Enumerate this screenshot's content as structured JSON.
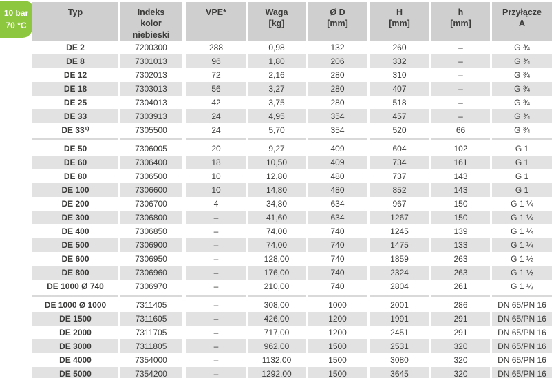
{
  "badge": {
    "line1": "10 bar",
    "line2": "70 °C"
  },
  "colors": {
    "badge_green": "#8dc63f",
    "header_gray": "#cfcfcf",
    "stripe_gray": "#e2e2e2",
    "text": "#3b3b3a"
  },
  "table": {
    "headers": [
      "Typ",
      "Indeks\nkolor niebieski",
      "VPE*",
      "Waga\n[kg]",
      "Ø D\n[mm]",
      "H\n[mm]",
      "h\n[mm]",
      "Przyłącze\nA"
    ],
    "groups": [
      {
        "rows": [
          [
            "DE 2",
            "7200300",
            "288",
            "0,98",
            "132",
            "260",
            "–",
            "G ¾"
          ],
          [
            "DE 8",
            "7301013",
            "96",
            "1,80",
            "206",
            "332",
            "–",
            "G ¾"
          ],
          [
            "DE 12",
            "7302013",
            "72",
            "2,16",
            "280",
            "310",
            "–",
            "G ¾"
          ],
          [
            "DE 18",
            "7303013",
            "56",
            "3,27",
            "280",
            "407",
            "–",
            "G ¾"
          ],
          [
            "DE 25",
            "7304013",
            "42",
            "3,75",
            "280",
            "518",
            "–",
            "G ¾"
          ],
          [
            "DE 33",
            "7303913",
            "24",
            "4,95",
            "354",
            "457",
            "–",
            "G ¾"
          ],
          [
            "DE 33¹⁾",
            "7305500",
            "24",
            "5,70",
            "354",
            "520",
            "66",
            "G ¾"
          ]
        ]
      },
      {
        "rows": [
          [
            "DE 50",
            "7306005",
            "20",
            "9,27",
            "409",
            "604",
            "102",
            "G 1"
          ],
          [
            "DE 60",
            "7306400",
            "18",
            "10,50",
            "409",
            "734",
            "161",
            "G 1"
          ],
          [
            "DE 80",
            "7306500",
            "10",
            "12,80",
            "480",
            "737",
            "143",
            "G 1"
          ],
          [
            "DE 100",
            "7306600",
            "10",
            "14,80",
            "480",
            "852",
            "143",
            "G 1"
          ],
          [
            "DE 200",
            "7306700",
            "4",
            "34,80",
            "634",
            "967",
            "150",
            "G 1 ¼"
          ],
          [
            "DE 300",
            "7306800",
            "–",
            "41,60",
            "634",
            "1267",
            "150",
            "G 1 ¼"
          ],
          [
            "DE 400",
            "7306850",
            "–",
            "74,00",
            "740",
            "1245",
            "139",
            "G 1 ¼"
          ],
          [
            "DE 500",
            "7306900",
            "–",
            "74,00",
            "740",
            "1475",
            "133",
            "G 1 ¼"
          ],
          [
            "DE 600",
            "7306950",
            "–",
            "128,00",
            "740",
            "1859",
            "263",
            "G 1 ½"
          ],
          [
            "DE 800",
            "7306960",
            "–",
            "176,00",
            "740",
            "2324",
            "263",
            "G 1 ½"
          ],
          [
            "DE 1000 Ø 740",
            "7306970",
            "–",
            "210,00",
            "740",
            "2804",
            "261",
            "G 1 ½"
          ]
        ]
      },
      {
        "rows": [
          [
            "DE 1000 Ø 1000",
            "7311405",
            "–",
            "308,00",
            "1000",
            "2001",
            "286",
            "DN 65/PN 16"
          ],
          [
            "DE 1500",
            "7311605",
            "–",
            "426,00",
            "1200",
            "1991",
            "291",
            "DN 65/PN 16"
          ],
          [
            "DE 2000",
            "7311705",
            "–",
            "717,00",
            "1200",
            "2451",
            "291",
            "DN 65/PN 16"
          ],
          [
            "DE 3000",
            "7311805",
            "–",
            "962,00",
            "1500",
            "2531",
            "320",
            "DN 65/PN 16"
          ],
          [
            "DE 4000",
            "7354000",
            "–",
            "1132,00",
            "1500",
            "3080",
            "320",
            "DN 65/PN 16"
          ],
          [
            "DE 5000",
            "7354200",
            "–",
            "1292,00",
            "1500",
            "3645",
            "320",
            "DN 65/PN 16"
          ]
        ]
      }
    ]
  }
}
